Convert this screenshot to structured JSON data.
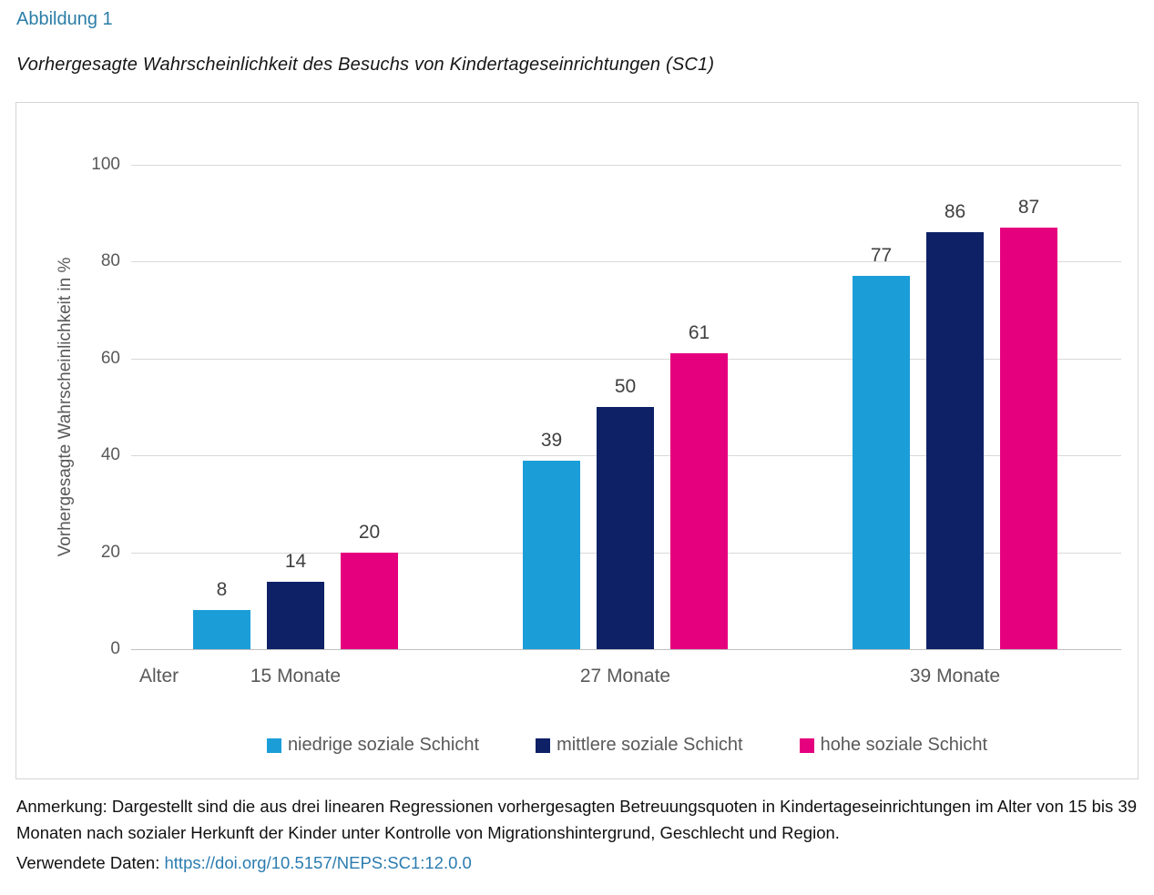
{
  "header": {
    "figure_label": "Abbildung 1",
    "title": "Vorhergesagte Wahrscheinlichkeit des Besuchs von Kindertageseinrichtungen (SC1)"
  },
  "chart_data": {
    "type": "bar",
    "title": "Vorhergesagte Wahrscheinlichkeit des Besuchs von Kindertageseinrichtungen (SC1)",
    "categories": [
      "15 Monate",
      "27 Monate",
      "39 Monate"
    ],
    "series": [
      {
        "name": "niedrige soziale Schicht",
        "color": "#1b9ed8",
        "values": [
          8,
          39,
          77
        ]
      },
      {
        "name": "mittlere soziale Schicht",
        "color": "#0e2167",
        "values": [
          14,
          50,
          86
        ]
      },
      {
        "name": "hohe soziale Schicht",
        "color": "#e5007e",
        "values": [
          20,
          61,
          87
        ]
      }
    ],
    "xlabel": "Alter",
    "ylabel": "Vorhergesagte Wahrscheinlichkeit in %",
    "ylim": [
      0,
      100
    ],
    "yticks": [
      0,
      20,
      40,
      60,
      80,
      100
    ],
    "grid": true,
    "data_labels": true,
    "legend_position": "bottom"
  },
  "notes": {
    "anmerkung": "Anmerkung: Dargestellt sind die aus drei linearen Regressionen vorhergesagten Betreuungsquoten in Kindertageseinrichtungen im Alter von 15 bis 39 Monaten nach sozialer Herkunft der Kinder unter Kontrolle von Migrationshintergrund, Geschlecht und Region.",
    "data_source_label": "Verwendete Daten: ",
    "data_source_link": "https://doi.org/10.5157/NEPS:SC1:12.0.0"
  }
}
